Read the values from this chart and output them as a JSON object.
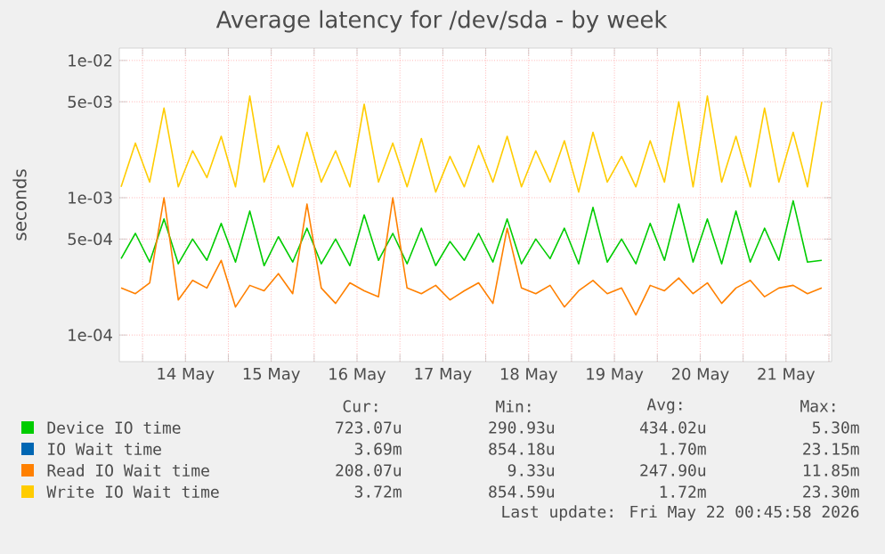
{
  "chart_data": {
    "type": "line",
    "title": "Average latency for /dev/sda - by week",
    "ylabel": "seconds",
    "log": true,
    "grid": true,
    "legend": "bottom",
    "marker": "none",
    "line_style": "solid",
    "x": [
      "2026-05-13T18:00",
      "2026-05-13T22:00",
      "2026-05-14T02:00",
      "2026-05-14T06:00",
      "2026-05-14T10:00",
      "2026-05-14T14:00",
      "2026-05-14T18:00",
      "2026-05-14T22:00",
      "2026-05-15T02:00",
      "2026-05-15T06:00",
      "2026-05-15T10:00",
      "2026-05-15T14:00",
      "2026-05-15T18:00",
      "2026-05-15T22:00",
      "2026-05-16T02:00",
      "2026-05-16T06:00",
      "2026-05-16T10:00",
      "2026-05-16T14:00",
      "2026-05-16T18:00",
      "2026-05-16T22:00",
      "2026-05-17T02:00",
      "2026-05-17T06:00",
      "2026-05-17T10:00",
      "2026-05-17T14:00",
      "2026-05-17T18:00",
      "2026-05-17T22:00",
      "2026-05-18T02:00",
      "2026-05-18T06:00",
      "2026-05-18T10:00",
      "2026-05-18T14:00",
      "2026-05-18T18:00",
      "2026-05-18T22:00",
      "2026-05-19T02:00",
      "2026-05-19T06:00",
      "2026-05-19T10:00",
      "2026-05-19T14:00",
      "2026-05-19T18:00",
      "2026-05-19T22:00",
      "2026-05-20T02:00",
      "2026-05-20T06:00",
      "2026-05-20T10:00",
      "2026-05-20T14:00",
      "2026-05-20T18:00",
      "2026-05-20T22:00",
      "2026-05-21T02:00",
      "2026-05-21T06:00",
      "2026-05-21T10:00",
      "2026-05-21T14:00",
      "2026-05-21T18:00",
      "2026-05-21T22:00"
    ],
    "xlim": [
      "2026-05-13T17:30",
      "2026-05-22T00:45"
    ],
    "xticks": [
      {
        "value": "2026-05-14T00:00",
        "label": null
      },
      {
        "value": "2026-05-14T12:00",
        "label": "14 May"
      },
      {
        "value": "2026-05-15T00:00",
        "label": null
      },
      {
        "value": "2026-05-15T12:00",
        "label": "15 May"
      },
      {
        "value": "2026-05-16T00:00",
        "label": null
      },
      {
        "value": "2026-05-16T12:00",
        "label": "16 May"
      },
      {
        "value": "2026-05-17T00:00",
        "label": null
      },
      {
        "value": "2026-05-17T12:00",
        "label": "17 May"
      },
      {
        "value": "2026-05-18T00:00",
        "label": null
      },
      {
        "value": "2026-05-18T12:00",
        "label": "18 May"
      },
      {
        "value": "2026-05-19T00:00",
        "label": null
      },
      {
        "value": "2026-05-19T12:00",
        "label": "19 May"
      },
      {
        "value": "2026-05-20T00:00",
        "label": null
      },
      {
        "value": "2026-05-20T12:00",
        "label": "20 May"
      },
      {
        "value": "2026-05-21T00:00",
        "label": null
      },
      {
        "value": "2026-05-21T12:00",
        "label": "21 May"
      },
      {
        "value": "2026-05-22T00:00",
        "label": null
      }
    ],
    "ylim": [
      6.4e-05,
      0.0123
    ],
    "yticks": [
      {
        "value": 0.0001,
        "label": "1e-04"
      },
      {
        "value": 0.0005,
        "label": "5e-04"
      },
      {
        "value": 0.001,
        "label": "1e-03"
      },
      {
        "value": 0.005,
        "label": "5e-03"
      },
      {
        "value": 0.01,
        "label": "1e-02"
      }
    ],
    "series": [
      {
        "name": "Device IO time",
        "color": "#00cc00",
        "values": [
          0.00036,
          0.00055,
          0.00034,
          0.0007,
          0.00033,
          0.0005,
          0.00035,
          0.00065,
          0.00034,
          0.0008,
          0.00032,
          0.00052,
          0.00034,
          0.0006,
          0.00033,
          0.0005,
          0.00032,
          0.00075,
          0.00035,
          0.00055,
          0.00033,
          0.0006,
          0.00032,
          0.00048,
          0.00035,
          0.00055,
          0.00034,
          0.0007,
          0.00033,
          0.0005,
          0.00036,
          0.0006,
          0.00033,
          0.00085,
          0.00034,
          0.0005,
          0.00033,
          0.00065,
          0.00035,
          0.0009,
          0.00034,
          0.0007,
          0.00033,
          0.0008,
          0.00034,
          0.0006,
          0.00035,
          0.00095,
          0.00034,
          0.00035
        ]
      },
      {
        "name": "IO Wait time",
        "color": "#0066b3",
        "values": [
          null,
          null,
          null,
          null,
          null,
          null,
          null,
          null,
          null,
          null,
          null,
          null,
          null,
          null,
          null,
          null,
          null,
          null,
          null,
          null,
          null,
          null,
          null,
          null,
          null,
          null,
          null,
          null,
          null,
          null,
          null,
          null,
          null,
          null,
          null,
          null,
          null,
          null,
          null,
          null,
          null,
          null,
          null,
          null,
          null,
          null,
          null,
          null,
          null,
          null
        ]
      },
      {
        "name": "Read IO Wait time",
        "color": "#ff8000",
        "values": [
          0.00022,
          0.0002,
          0.00024,
          0.001,
          0.00018,
          0.00025,
          0.00022,
          0.00035,
          0.00016,
          0.00023,
          0.00021,
          0.00028,
          0.0002,
          0.0009,
          0.00022,
          0.00017,
          0.00024,
          0.00021,
          0.00019,
          0.001,
          0.00022,
          0.0002,
          0.00023,
          0.00018,
          0.00021,
          0.00024,
          0.00017,
          0.0006,
          0.00022,
          0.0002,
          0.00023,
          0.00016,
          0.00021,
          0.00025,
          0.0002,
          0.00022,
          0.00014,
          0.00023,
          0.00021,
          0.00026,
          0.0002,
          0.00024,
          0.00017,
          0.00022,
          0.00025,
          0.00019,
          0.00022,
          0.00023,
          0.0002,
          0.00022
        ]
      },
      {
        "name": "Write IO Wait time",
        "color": "#ffcc00",
        "values": [
          0.0012,
          0.0025,
          0.0013,
          0.0045,
          0.0012,
          0.0022,
          0.0014,
          0.0028,
          0.0012,
          0.0055,
          0.0013,
          0.0024,
          0.0012,
          0.003,
          0.0013,
          0.0022,
          0.0012,
          0.0048,
          0.0013,
          0.0025,
          0.0012,
          0.0027,
          0.0011,
          0.002,
          0.0012,
          0.0024,
          0.0013,
          0.0028,
          0.0012,
          0.0022,
          0.0013,
          0.0026,
          0.0011,
          0.003,
          0.0013,
          0.002,
          0.0012,
          0.0026,
          0.0013,
          0.005,
          0.0012,
          0.0055,
          0.0013,
          0.0028,
          0.0012,
          0.0045,
          0.0013,
          0.003,
          0.0012,
          0.005
        ]
      }
    ],
    "annotations": [
      "Cur:",
      "Min:",
      "Avg:",
      "Max:",
      "723.07u",
      "290.93u",
      "434.02u",
      "5.30m",
      "3.69m",
      "854.18u",
      "1.70m",
      "23.15m",
      "208.07u",
      "9.33u",
      "247.90u",
      "11.85m",
      "3.72m",
      "854.59u",
      "1.72m",
      "23.30m",
      "Last update: Fri May 22 00:45:58 2026"
    ]
  }
}
